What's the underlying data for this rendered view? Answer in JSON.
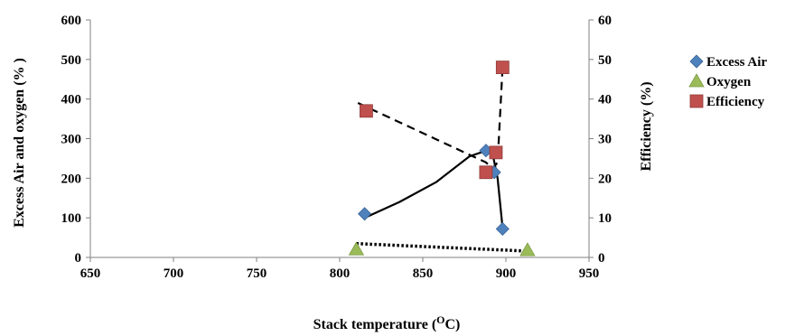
{
  "chart_data": {
    "type": "scatter",
    "title": "",
    "xlabel": "Stack temperature (",
    "xlabel_sup": "O",
    "xlabel_end": "C)",
    "ylabel_left": "Excess Air  and oxygen (% )",
    "ylabel_right": "Efficiency (%)",
    "xlim": [
      650,
      950
    ],
    "ylim_left": [
      0,
      600
    ],
    "ylim_right": [
      0,
      60
    ],
    "xticks": [
      "650",
      "700",
      "750",
      "800",
      "850",
      "900",
      "950"
    ],
    "yticks_left": [
      "0",
      "100",
      "200",
      "300",
      "400",
      "500",
      "600"
    ],
    "yticks_right": [
      "0",
      "10",
      "20",
      "30",
      "40",
      "50",
      "60"
    ],
    "legend_position": "right",
    "series": [
      {
        "name": "Excess Air",
        "axis": "left",
        "marker": "diamond",
        "color": "#4f81bd",
        "points": [
          [
            815,
            110
          ],
          [
            888,
            270
          ],
          [
            893,
            215
          ],
          [
            898,
            72
          ]
        ],
        "trendline": "solid",
        "trend": [
          [
            814,
            98
          ],
          [
            836,
            140
          ],
          [
            858,
            190
          ],
          [
            878,
            255
          ],
          [
            887,
            268
          ],
          [
            892,
            262
          ],
          [
            895,
            200
          ],
          [
            898,
            75
          ]
        ]
      },
      {
        "name": "Oxygen",
        "axis": "left",
        "marker": "triangle",
        "color": "#9bbb59",
        "points": [
          [
            810,
            20
          ],
          [
            913,
            18
          ]
        ],
        "trendline": "dotted",
        "trend": [
          [
            810,
            35
          ],
          [
            913,
            16
          ]
        ]
      },
      {
        "name": "Efficiency",
        "axis": "right",
        "marker": "square",
        "color": "#c0504d",
        "points": [
          [
            816,
            37
          ],
          [
            888,
            21.5
          ],
          [
            894,
            26.5
          ],
          [
            898,
            48
          ]
        ],
        "trendline": "dashed",
        "trend": [
          [
            811,
            39
          ],
          [
            888,
            24
          ],
          [
            892,
            22.5
          ],
          [
            895,
            24
          ],
          [
            898,
            48
          ]
        ]
      }
    ]
  }
}
